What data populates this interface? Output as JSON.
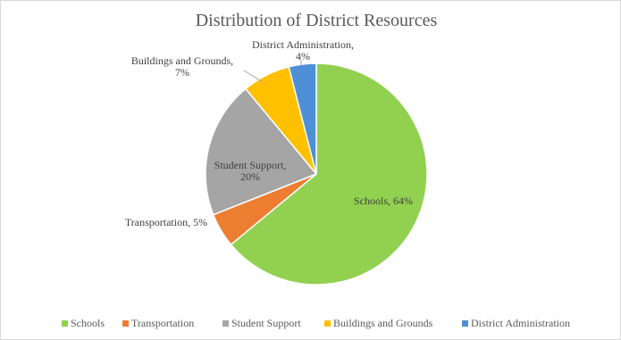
{
  "chart_data": {
    "type": "pie",
    "title": "Distribution of District Resources",
    "categories": [
      "Schools",
      "Transportation",
      "Student Support",
      "Buildings and Grounds",
      "District Administration"
    ],
    "values": [
      64,
      5,
      20,
      7,
      4
    ],
    "unit": "%",
    "colors": [
      "#92d050",
      "#ed7d31",
      "#a5a5a5",
      "#ffc000",
      "#4f8fd6"
    ],
    "data_labels": [
      [
        "Schools, 64%"
      ],
      [
        "Transportation, 5%"
      ],
      [
        "Student Support,",
        "20%"
      ],
      [
        "Buildings and Grounds,",
        "7%"
      ],
      [
        "District Administration,",
        "4%"
      ]
    ],
    "legend_position": "bottom",
    "start_angle": "12 o'clock",
    "direction": "clockwise, starting with Schools"
  }
}
